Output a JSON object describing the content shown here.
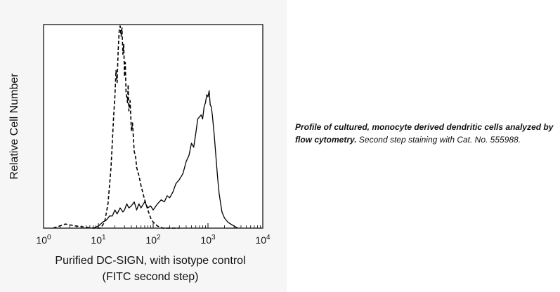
{
  "caption": {
    "bold_text": "Profile of cultured, monocyte derived dendritic cells analyzed by flow cytometry.",
    "normal_text": " Second step staining with Cat. No. 555988."
  },
  "chart_data": {
    "type": "line",
    "title": "",
    "xlabel_line1": "Purified DC-SIGN, with isotype control",
    "xlabel_line2": "(FITC second step)",
    "ylabel": "Relative Cell Number",
    "xscale": "log",
    "xlim": [
      1,
      10000
    ],
    "ylim": [
      0,
      100
    ],
    "grid": false,
    "x_ticks": [
      {
        "base": "10",
        "exp": "0",
        "value": 1
      },
      {
        "base": "10",
        "exp": "1",
        "value": 10
      },
      {
        "base": "10",
        "exp": "2",
        "value": 100
      },
      {
        "base": "10",
        "exp": "3",
        "value": 1000
      },
      {
        "base": "10",
        "exp": "4",
        "value": 10000
      }
    ],
    "series": [
      {
        "style": "dashed",
        "x": [
          1.5,
          2.5,
          4,
          8,
          11,
          13,
          15,
          17,
          19,
          20,
          21,
          22,
          23,
          24,
          25,
          26,
          27,
          28,
          29,
          30,
          31,
          32,
          34,
          35,
          36,
          38,
          40,
          42,
          45,
          48,
          50,
          55,
          60,
          70,
          80,
          90,
          100,
          120,
          150,
          200,
          300
        ],
        "y": [
          0,
          2,
          1,
          0,
          0,
          3,
          12,
          30,
          55,
          65,
          78,
          72,
          88,
          98,
          100,
          95,
          99,
          86,
          91,
          75,
          82,
          67,
          62,
          71,
          58,
          63,
          48,
          52,
          38,
          35,
          30,
          26,
          21,
          14,
          9,
          5,
          3,
          1,
          0,
          0,
          0
        ]
      },
      {
        "style": "solid",
        "x": [
          8,
          10,
          12,
          14,
          16,
          18,
          20,
          22,
          25,
          28,
          30,
          33,
          36,
          40,
          45,
          50,
          55,
          60,
          70,
          80,
          90,
          100,
          120,
          140,
          160,
          180,
          200,
          230,
          260,
          300,
          350,
          400,
          450,
          500,
          550,
          600,
          650,
          700,
          750,
          800,
          850,
          900,
          950,
          1000,
          1050,
          1100,
          1150,
          1200,
          1300,
          1400,
          1500,
          1600,
          1800,
          2000,
          2300,
          2600,
          3000,
          3500
        ],
        "y": [
          0,
          1,
          3,
          4,
          6,
          6,
          9,
          7,
          10,
          8,
          9,
          12,
          10,
          11,
          13,
          9,
          12,
          10,
          13,
          10,
          11,
          9,
          12,
          14,
          13,
          16,
          15,
          18,
          22,
          24,
          27,
          33,
          36,
          42,
          40,
          47,
          54,
          55,
          56,
          54,
          60,
          62,
          66,
          65,
          68,
          61,
          60,
          56,
          46,
          35,
          25,
          17,
          8,
          5,
          3,
          2,
          1,
          0
        ]
      }
    ]
  }
}
